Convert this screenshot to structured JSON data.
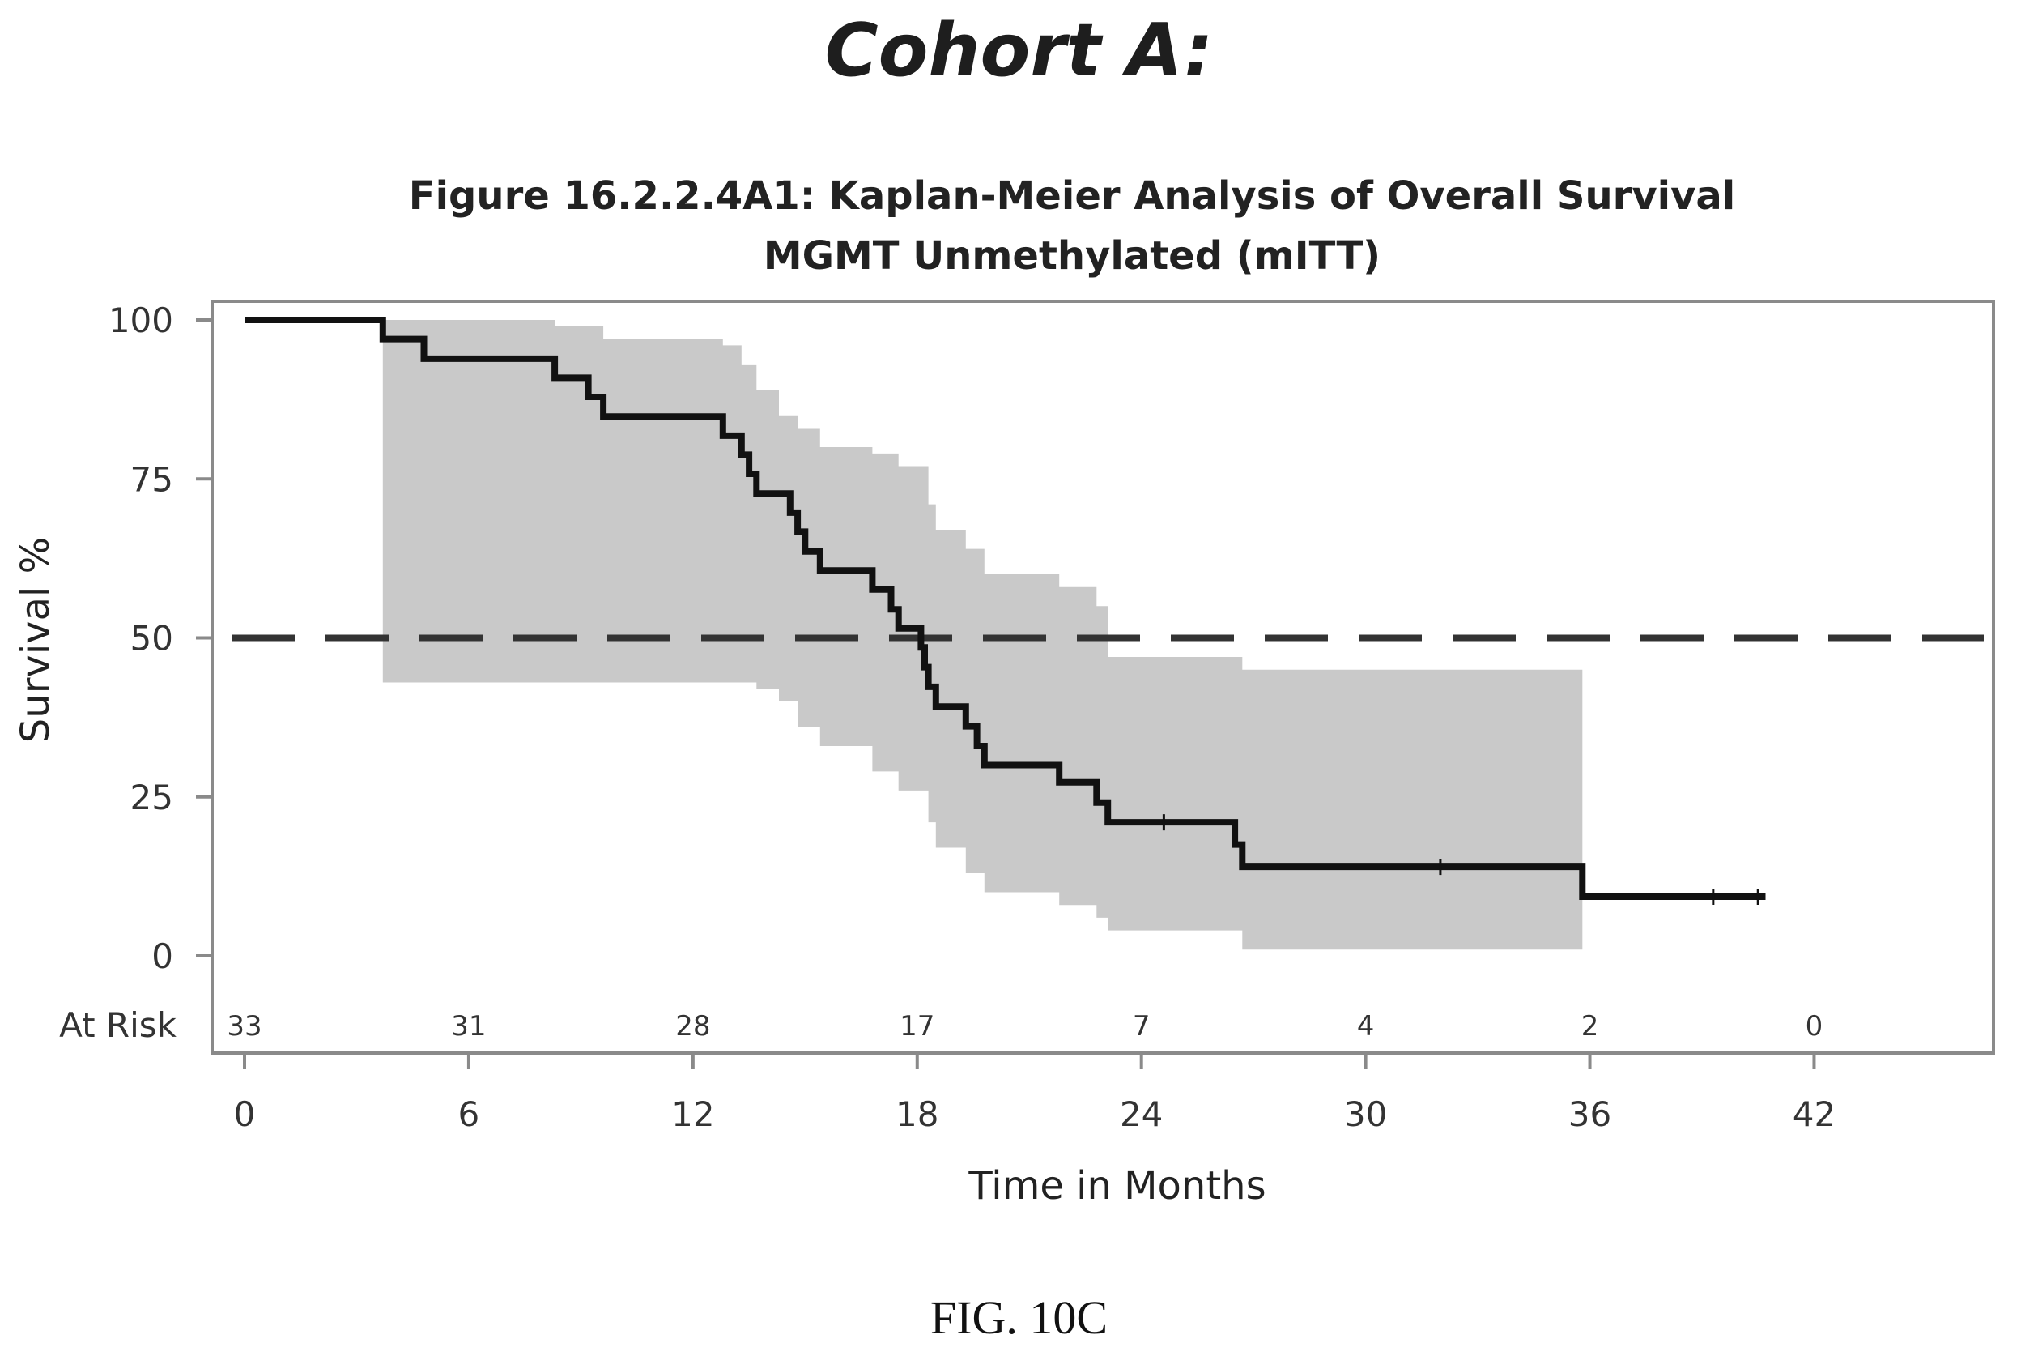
{
  "page": {
    "heading": "Cohort A:",
    "caption": "FIG. 10C"
  },
  "chart_data": {
    "type": "line",
    "subtype": "kaplan-meier",
    "title": "Figure 16.2.2.4A1: Kaplan-Meier Analysis of Overall Survival",
    "subtitle": "MGMT Unmethylated (mITT)",
    "xlabel": "Time in Months",
    "ylabel": "Survival %",
    "xlim": [
      0,
      46.8
    ],
    "ylim": [
      0,
      100
    ],
    "x_ticks": [
      0,
      6,
      12,
      18,
      24,
      30,
      36,
      42
    ],
    "y_ticks": [
      0,
      25,
      50,
      75,
      100
    ],
    "grid": false,
    "legend": "none",
    "reference_line": {
      "y": 50,
      "style": "dashed"
    },
    "colors": {
      "curve": "#111111",
      "confidence_band": "#c9c9c9",
      "frame": "#8a8a8a",
      "reference_line": "#333333"
    },
    "series": [
      {
        "values": [
          [
            0,
            100
          ],
          [
            3.7,
            100
          ],
          [
            3.7,
            97
          ],
          [
            4.8,
            97
          ],
          [
            4.8,
            93.9
          ],
          [
            8.3,
            93.9
          ],
          [
            8.3,
            90.9
          ],
          [
            9.2,
            90.9
          ],
          [
            9.2,
            87.9
          ],
          [
            9.6,
            87.9
          ],
          [
            9.6,
            84.8
          ],
          [
            12.8,
            84.8
          ],
          [
            12.8,
            81.8
          ],
          [
            13.3,
            81.8
          ],
          [
            13.3,
            78.8
          ],
          [
            13.5,
            78.8
          ],
          [
            13.5,
            75.8
          ],
          [
            13.7,
            75.8
          ],
          [
            13.7,
            72.7
          ],
          [
            14.6,
            72.7
          ],
          [
            14.6,
            69.7
          ],
          [
            14.8,
            69.7
          ],
          [
            14.8,
            66.7
          ],
          [
            15.0,
            66.7
          ],
          [
            15.0,
            63.6
          ],
          [
            15.4,
            63.6
          ],
          [
            15.4,
            60.6
          ],
          [
            16.8,
            60.6
          ],
          [
            16.8,
            57.6
          ],
          [
            17.3,
            57.6
          ],
          [
            17.3,
            54.5
          ],
          [
            17.5,
            54.5
          ],
          [
            17.5,
            51.5
          ],
          [
            18.1,
            51.5
          ],
          [
            18.1,
            48.5
          ],
          [
            18.2,
            48.5
          ],
          [
            18.2,
            45.4
          ],
          [
            18.3,
            45.4
          ],
          [
            18.3,
            42.3
          ],
          [
            18.5,
            42.3
          ],
          [
            18.5,
            39.2
          ],
          [
            19.3,
            39.2
          ],
          [
            19.3,
            36.1
          ],
          [
            19.6,
            36.1
          ],
          [
            19.6,
            33.0
          ],
          [
            19.8,
            33.0
          ],
          [
            19.8,
            30.0
          ],
          [
            21.8,
            30.0
          ],
          [
            21.8,
            27.3
          ],
          [
            22.8,
            27.3
          ],
          [
            22.8,
            24.1
          ],
          [
            23.1,
            24.1
          ],
          [
            23.1,
            21.0
          ],
          [
            26.5,
            21.0
          ],
          [
            26.5,
            17.5
          ],
          [
            26.7,
            17.5
          ],
          [
            26.7,
            14.0
          ],
          [
            35.8,
            14.0
          ],
          [
            35.8,
            9.3
          ],
          [
            40.7,
            9.3
          ]
        ],
        "censored": [
          [
            24.6,
            21.0
          ],
          [
            32.0,
            14.0
          ],
          [
            39.3,
            9.3
          ],
          [
            40.5,
            9.3
          ]
        ],
        "confidence_band": {
          "x": [
            3.7,
            8.3,
            9.6,
            12.8,
            13.3,
            13.7,
            14.3,
            14.8,
            15.4,
            16.8,
            17.5,
            18.3,
            18.5,
            19.3,
            19.8,
            21.8,
            22.8,
            23.1,
            26.5,
            26.7,
            35.8
          ],
          "upper": [
            100,
            99,
            97,
            96,
            93,
            89,
            85,
            83,
            80,
            79,
            77,
            71,
            67,
            64,
            60,
            58,
            55,
            47,
            47,
            45,
            45
          ],
          "lower": [
            43,
            43,
            43,
            43,
            43,
            42,
            40,
            36,
            33,
            29,
            26,
            21,
            17,
            13,
            10,
            8,
            6,
            4,
            4,
            1,
            1
          ]
        }
      }
    ],
    "at_risk": {
      "label": "At Risk",
      "times": [
        0,
        6,
        12,
        18,
        24,
        30,
        36,
        42
      ],
      "counts": [
        33,
        31,
        28,
        17,
        7,
        4,
        2,
        0
      ]
    }
  }
}
